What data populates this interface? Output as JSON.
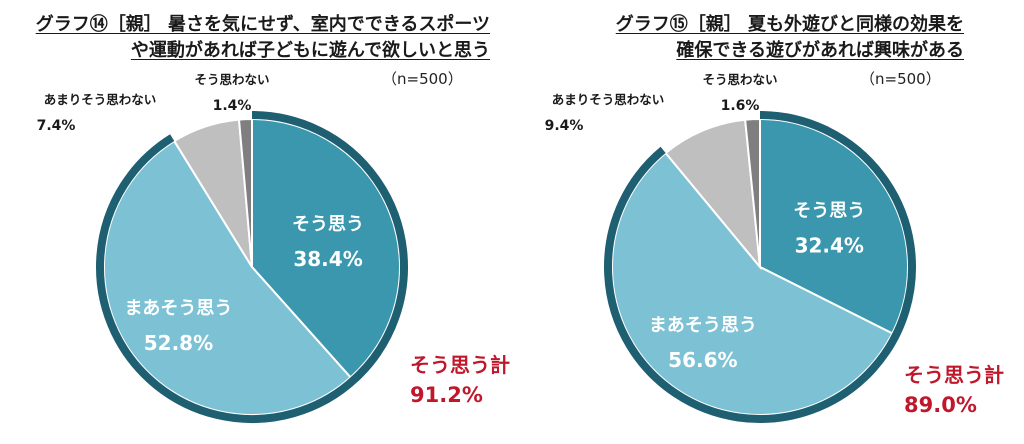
{
  "chart_data": [
    {
      "type": "pie",
      "title_lines": [
        "グラフ⑭［親］ 暑さを気にせず、室内でできるスポーツ",
        "や運動があれば子どもに遊んで欲しいと思う"
      ],
      "n_label": "（n=500）",
      "slices": [
        {
          "label": "そう思う",
          "value": 38.4,
          "value_label": "38.4%",
          "color": "#3a97ad"
        },
        {
          "label": "まあそう思う",
          "value": 52.8,
          "value_label": "52.8%",
          "color": "#7dc2d4"
        },
        {
          "label": "あまりそう思わない",
          "value": 7.4,
          "value_label": "7.4%",
          "color": "#bfbfbf"
        },
        {
          "label": "そう思わない",
          "value": 1.4,
          "value_label": "1.4%",
          "color": "#7f7f7f"
        }
      ],
      "total_label": "そう思う計",
      "total_value": "91.2%",
      "ring_color": "#1f5f72"
    },
    {
      "type": "pie",
      "title_lines": [
        "グラフ⑮［親］ 夏も外遊びと同様の効果を",
        "確保できる遊びがあれば興味がある"
      ],
      "n_label": "（n=500）",
      "slices": [
        {
          "label": "そう思う",
          "value": 32.4,
          "value_label": "32.4%",
          "color": "#3a97ad"
        },
        {
          "label": "まあそう思う",
          "value": 56.6,
          "value_label": "56.6%",
          "color": "#7dc2d4"
        },
        {
          "label": "あまりそう思わない",
          "value": 9.4,
          "value_label": "9.4%",
          "color": "#bfbfbf"
        },
        {
          "label": "そう思わない",
          "value": 1.6,
          "value_label": "1.6%",
          "color": "#7f7f7f"
        }
      ],
      "total_label": "そう思う計",
      "total_value": "89.0%",
      "ring_color": "#1f5f72"
    }
  ]
}
